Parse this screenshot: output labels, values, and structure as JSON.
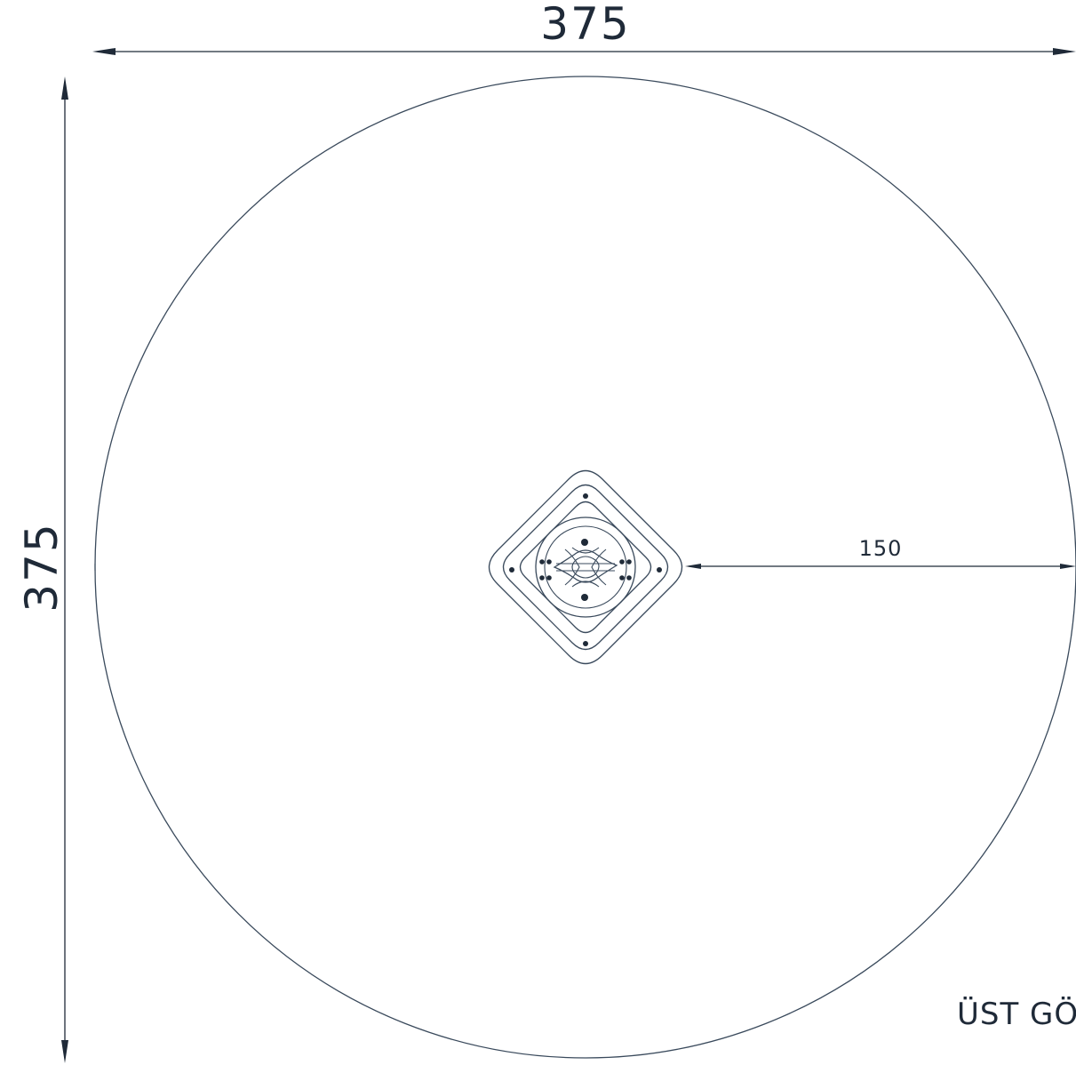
{
  "drawing": {
    "dimensions": {
      "width_label": "375",
      "height_label": "375",
      "radius_label": "150"
    },
    "view_title": "ÜST GÖ",
    "colors": {
      "line": "#3a4a5c",
      "text": "#1f2a38",
      "background": "#ffffff"
    }
  }
}
